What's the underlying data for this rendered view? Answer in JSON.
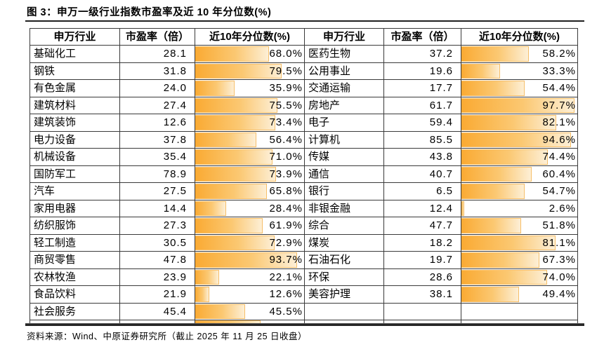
{
  "title": "图 3：申万一级行业指数市盈率及近 10 年分位数(%)",
  "source": "资料来源：Wind、中原证券研究所（截止 2025 年 11 月 25 日收盘）",
  "colors": {
    "bar_gradient_start": "#FAAA33",
    "bar_gradient_mid": "#FBC872",
    "bar_gradient_end": "#FDEFD6",
    "bar_border": "#F6BE68",
    "grid_border": "#3A3A3A",
    "rule": "#1F1F1F",
    "text": "#000000"
  },
  "table": {
    "headers": [
      "申万行业",
      "市盈率（倍）",
      "近10年分位数(%)",
      "申万行业",
      "市盈率（倍）",
      "近10年分位数(%)"
    ],
    "left_rows": [
      {
        "industry": "基础化工",
        "pe": "28.1",
        "percentile": "68.0%",
        "percentile_value": 68.0
      },
      {
        "industry": "钢铁",
        "pe": "31.8",
        "percentile": "79.5%",
        "percentile_value": 79.5
      },
      {
        "industry": "有色金属",
        "pe": "24.0",
        "percentile": "35.9%",
        "percentile_value": 35.9
      },
      {
        "industry": "建筑材料",
        "pe": "27.4",
        "percentile": "75.5%",
        "percentile_value": 75.5
      },
      {
        "industry": "建筑装饰",
        "pe": "12.6",
        "percentile": "73.4%",
        "percentile_value": 73.4
      },
      {
        "industry": "电力设备",
        "pe": "37.8",
        "percentile": "56.4%",
        "percentile_value": 56.4
      },
      {
        "industry": "机械设备",
        "pe": "35.4",
        "percentile": "71.0%",
        "percentile_value": 71.0
      },
      {
        "industry": "国防军工",
        "pe": "78.9",
        "percentile": "73.9%",
        "percentile_value": 73.9
      },
      {
        "industry": "汽车",
        "pe": "27.5",
        "percentile": "65.8%",
        "percentile_value": 65.8
      },
      {
        "industry": "家用电器",
        "pe": "14.4",
        "percentile": "28.4%",
        "percentile_value": 28.4
      },
      {
        "industry": "纺织服饰",
        "pe": "27.3",
        "percentile": "61.9%",
        "percentile_value": 61.9
      },
      {
        "industry": "轻工制造",
        "pe": "30.5",
        "percentile": "72.9%",
        "percentile_value": 72.9
      },
      {
        "industry": "商贸零售",
        "pe": "47.8",
        "percentile": "93.7%",
        "percentile_value": 93.7
      },
      {
        "industry": "农林牧渔",
        "pe": "23.9",
        "percentile": "22.1%",
        "percentile_value": 22.1
      },
      {
        "industry": "食品饮料",
        "pe": "21.9",
        "percentile": "12.6%",
        "percentile_value": 12.6
      },
      {
        "industry": "社会服务",
        "pe": "45.4",
        "percentile": "45.5%",
        "percentile_value": 45.5
      }
    ],
    "right_rows": [
      {
        "industry": "医药生物",
        "pe": "37.2",
        "percentile": "58.2%",
        "percentile_value": 58.2
      },
      {
        "industry": "公用事业",
        "pe": "19.6",
        "percentile": "33.3%",
        "percentile_value": 33.3
      },
      {
        "industry": "交通运输",
        "pe": "17.7",
        "percentile": "54.4%",
        "percentile_value": 54.4
      },
      {
        "industry": "房地产",
        "pe": "61.7",
        "percentile": "97.7%",
        "percentile_value": 97.7
      },
      {
        "industry": "电子",
        "pe": "59.4",
        "percentile": "82.1%",
        "percentile_value": 82.1
      },
      {
        "industry": "计算机",
        "pe": "85.5",
        "percentile": "94.6%",
        "percentile_value": 94.6
      },
      {
        "industry": "传媒",
        "pe": "43.8",
        "percentile": "74.4%",
        "percentile_value": 74.4
      },
      {
        "industry": "通信",
        "pe": "40.7",
        "percentile": "60.4%",
        "percentile_value": 60.4
      },
      {
        "industry": "银行",
        "pe": "6.5",
        "percentile": "54.7%",
        "percentile_value": 54.7
      },
      {
        "industry": "非银金融",
        "pe": "12.4",
        "percentile": "2.6%",
        "percentile_value": 2.6
      },
      {
        "industry": "综合",
        "pe": "47.7",
        "percentile": "51.8%",
        "percentile_value": 51.8
      },
      {
        "industry": "煤炭",
        "pe": "18.2",
        "percentile": "81.1%",
        "percentile_value": 81.1
      },
      {
        "industry": "石油石化",
        "pe": "19.7",
        "percentile": "67.3%",
        "percentile_value": 67.3
      },
      {
        "industry": "环保",
        "pe": "28.6",
        "percentile": "74.0%",
        "percentile_value": 74.0
      },
      {
        "industry": "美容护理",
        "pe": "38.1",
        "percentile": "49.4%",
        "percentile_value": 49.4
      }
    ],
    "partial_bar_pct": 60
  },
  "chart_data": {
    "type": "table",
    "title": "申万一级行业指数市盈率及近10年分位数(%)",
    "columns": [
      "申万行业",
      "市盈率（倍）",
      "近10年分位数(%)"
    ],
    "bar_column": "近10年分位数(%)",
    "bar_range": [
      0,
      100
    ],
    "bar_color": "#FAAA33",
    "rows": [
      [
        "基础化工",
        28.1,
        68.0
      ],
      [
        "钢铁",
        31.8,
        79.5
      ],
      [
        "有色金属",
        24.0,
        35.9
      ],
      [
        "建筑材料",
        27.4,
        75.5
      ],
      [
        "建筑装饰",
        12.6,
        73.4
      ],
      [
        "电力设备",
        37.8,
        56.4
      ],
      [
        "机械设备",
        35.4,
        71.0
      ],
      [
        "国防军工",
        78.9,
        73.9
      ],
      [
        "汽车",
        27.5,
        65.8
      ],
      [
        "家用电器",
        14.4,
        28.4
      ],
      [
        "纺织服饰",
        27.3,
        61.9
      ],
      [
        "轻工制造",
        30.5,
        72.9
      ],
      [
        "商贸零售",
        47.8,
        93.7
      ],
      [
        "农林牧渔",
        23.9,
        22.1
      ],
      [
        "食品饮料",
        21.9,
        12.6
      ],
      [
        "社会服务",
        45.4,
        45.5
      ],
      [
        "医药生物",
        37.2,
        58.2
      ],
      [
        "公用事业",
        19.6,
        33.3
      ],
      [
        "交通运输",
        17.7,
        54.4
      ],
      [
        "房地产",
        61.7,
        97.7
      ],
      [
        "电子",
        59.4,
        82.1
      ],
      [
        "计算机",
        85.5,
        94.6
      ],
      [
        "传媒",
        43.8,
        74.4
      ],
      [
        "通信",
        40.7,
        60.4
      ],
      [
        "银行",
        6.5,
        54.7
      ],
      [
        "非银金融",
        12.4,
        2.6
      ],
      [
        "综合",
        47.7,
        51.8
      ],
      [
        "煤炭",
        18.2,
        81.1
      ],
      [
        "石油石化",
        19.7,
        67.3
      ],
      [
        "环保",
        28.6,
        74.0
      ],
      [
        "美容护理",
        38.1,
        49.4
      ]
    ]
  }
}
